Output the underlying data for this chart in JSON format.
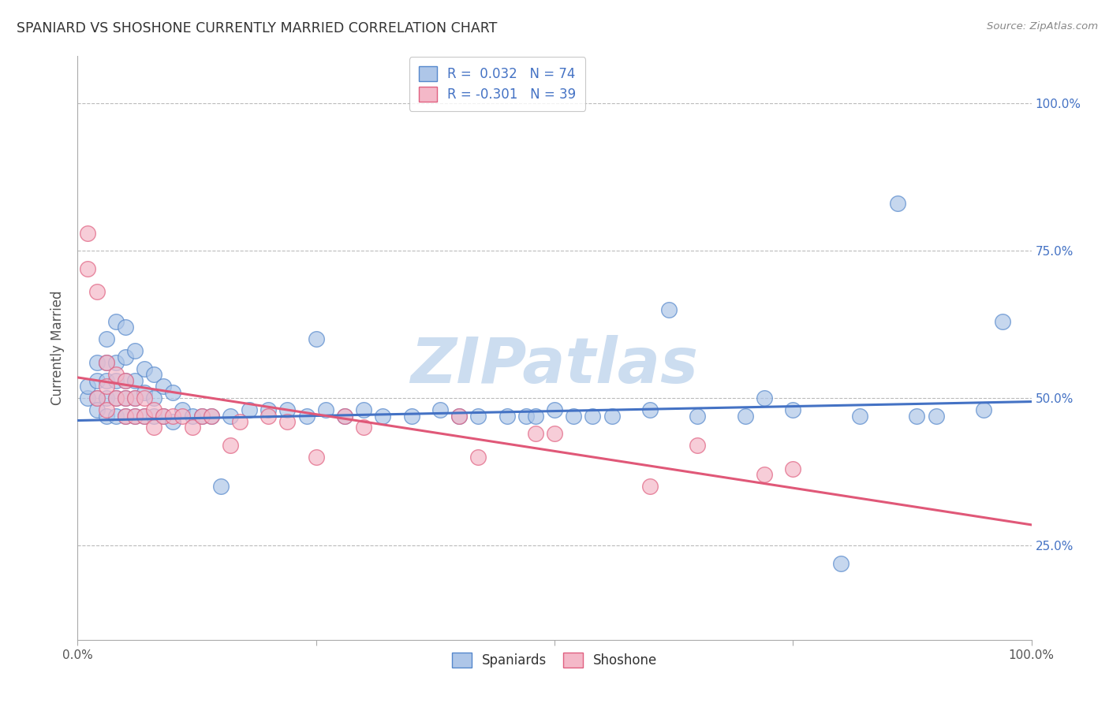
{
  "title": "SPANIARD VS SHOSHONE CURRENTLY MARRIED CORRELATION CHART",
  "source": "Source: ZipAtlas.com",
  "ylabel": "Currently Married",
  "yticks": [
    0.25,
    0.5,
    0.75,
    1.0
  ],
  "ytick_labels": [
    "25.0%",
    "50.0%",
    "75.0%",
    "100.0%"
  ],
  "xlim": [
    0.0,
    1.0
  ],
  "ylim": [
    0.09,
    1.08
  ],
  "legend_blue_r": "0.032",
  "legend_blue_n": "74",
  "legend_pink_r": "-0.301",
  "legend_pink_n": "39",
  "blue_fill": "#aec6e8",
  "pink_fill": "#f4b8c8",
  "blue_edge": "#5588cc",
  "pink_edge": "#e06080",
  "blue_line": "#4472c4",
  "pink_line": "#e05878",
  "watermark": "ZIPatlas",
  "watermark_color": "#ccddf0",
  "grid_color": "#bbbbbb",
  "background_color": "#ffffff",
  "blue_x": [
    0.01,
    0.01,
    0.02,
    0.02,
    0.02,
    0.02,
    0.03,
    0.03,
    0.03,
    0.03,
    0.03,
    0.04,
    0.04,
    0.04,
    0.04,
    0.04,
    0.05,
    0.05,
    0.05,
    0.05,
    0.05,
    0.06,
    0.06,
    0.06,
    0.06,
    0.07,
    0.07,
    0.07,
    0.08,
    0.08,
    0.08,
    0.09,
    0.09,
    0.1,
    0.1,
    0.11,
    0.12,
    0.13,
    0.14,
    0.15,
    0.16,
    0.18,
    0.2,
    0.22,
    0.24,
    0.25,
    0.26,
    0.28,
    0.3,
    0.32,
    0.35,
    0.38,
    0.4,
    0.42,
    0.45,
    0.47,
    0.48,
    0.5,
    0.52,
    0.54,
    0.56,
    0.6,
    0.62,
    0.65,
    0.7,
    0.72,
    0.75,
    0.8,
    0.82,
    0.86,
    0.88,
    0.9,
    0.95,
    0.97
  ],
  "blue_y": [
    0.5,
    0.52,
    0.5,
    0.53,
    0.56,
    0.48,
    0.47,
    0.5,
    0.53,
    0.56,
    0.6,
    0.47,
    0.5,
    0.53,
    0.56,
    0.63,
    0.47,
    0.5,
    0.53,
    0.57,
    0.62,
    0.47,
    0.5,
    0.53,
    0.58,
    0.47,
    0.51,
    0.55,
    0.47,
    0.5,
    0.54,
    0.47,
    0.52,
    0.46,
    0.51,
    0.48,
    0.47,
    0.47,
    0.47,
    0.35,
    0.47,
    0.48,
    0.48,
    0.48,
    0.47,
    0.6,
    0.48,
    0.47,
    0.48,
    0.47,
    0.47,
    0.48,
    0.47,
    0.47,
    0.47,
    0.47,
    0.47,
    0.48,
    0.47,
    0.47,
    0.47,
    0.48,
    0.65,
    0.47,
    0.47,
    0.5,
    0.48,
    0.22,
    0.47,
    0.83,
    0.47,
    0.47,
    0.48,
    0.63
  ],
  "pink_x": [
    0.01,
    0.01,
    0.02,
    0.02,
    0.03,
    0.03,
    0.03,
    0.04,
    0.04,
    0.05,
    0.05,
    0.05,
    0.06,
    0.06,
    0.07,
    0.07,
    0.08,
    0.08,
    0.09,
    0.1,
    0.11,
    0.12,
    0.13,
    0.14,
    0.16,
    0.17,
    0.2,
    0.22,
    0.25,
    0.28,
    0.3,
    0.4,
    0.42,
    0.48,
    0.5,
    0.6,
    0.65,
    0.72,
    0.75
  ],
  "pink_y": [
    0.78,
    0.72,
    0.5,
    0.68,
    0.48,
    0.52,
    0.56,
    0.5,
    0.54,
    0.47,
    0.5,
    0.53,
    0.47,
    0.5,
    0.47,
    0.5,
    0.45,
    0.48,
    0.47,
    0.47,
    0.47,
    0.45,
    0.47,
    0.47,
    0.42,
    0.46,
    0.47,
    0.46,
    0.4,
    0.47,
    0.45,
    0.47,
    0.4,
    0.44,
    0.44,
    0.35,
    0.42,
    0.37,
    0.38
  ],
  "blue_trend_x": [
    0.0,
    1.0
  ],
  "blue_trend_y": [
    0.462,
    0.494
  ],
  "pink_trend_x": [
    0.0,
    1.0
  ],
  "pink_trend_y": [
    0.535,
    0.285
  ]
}
